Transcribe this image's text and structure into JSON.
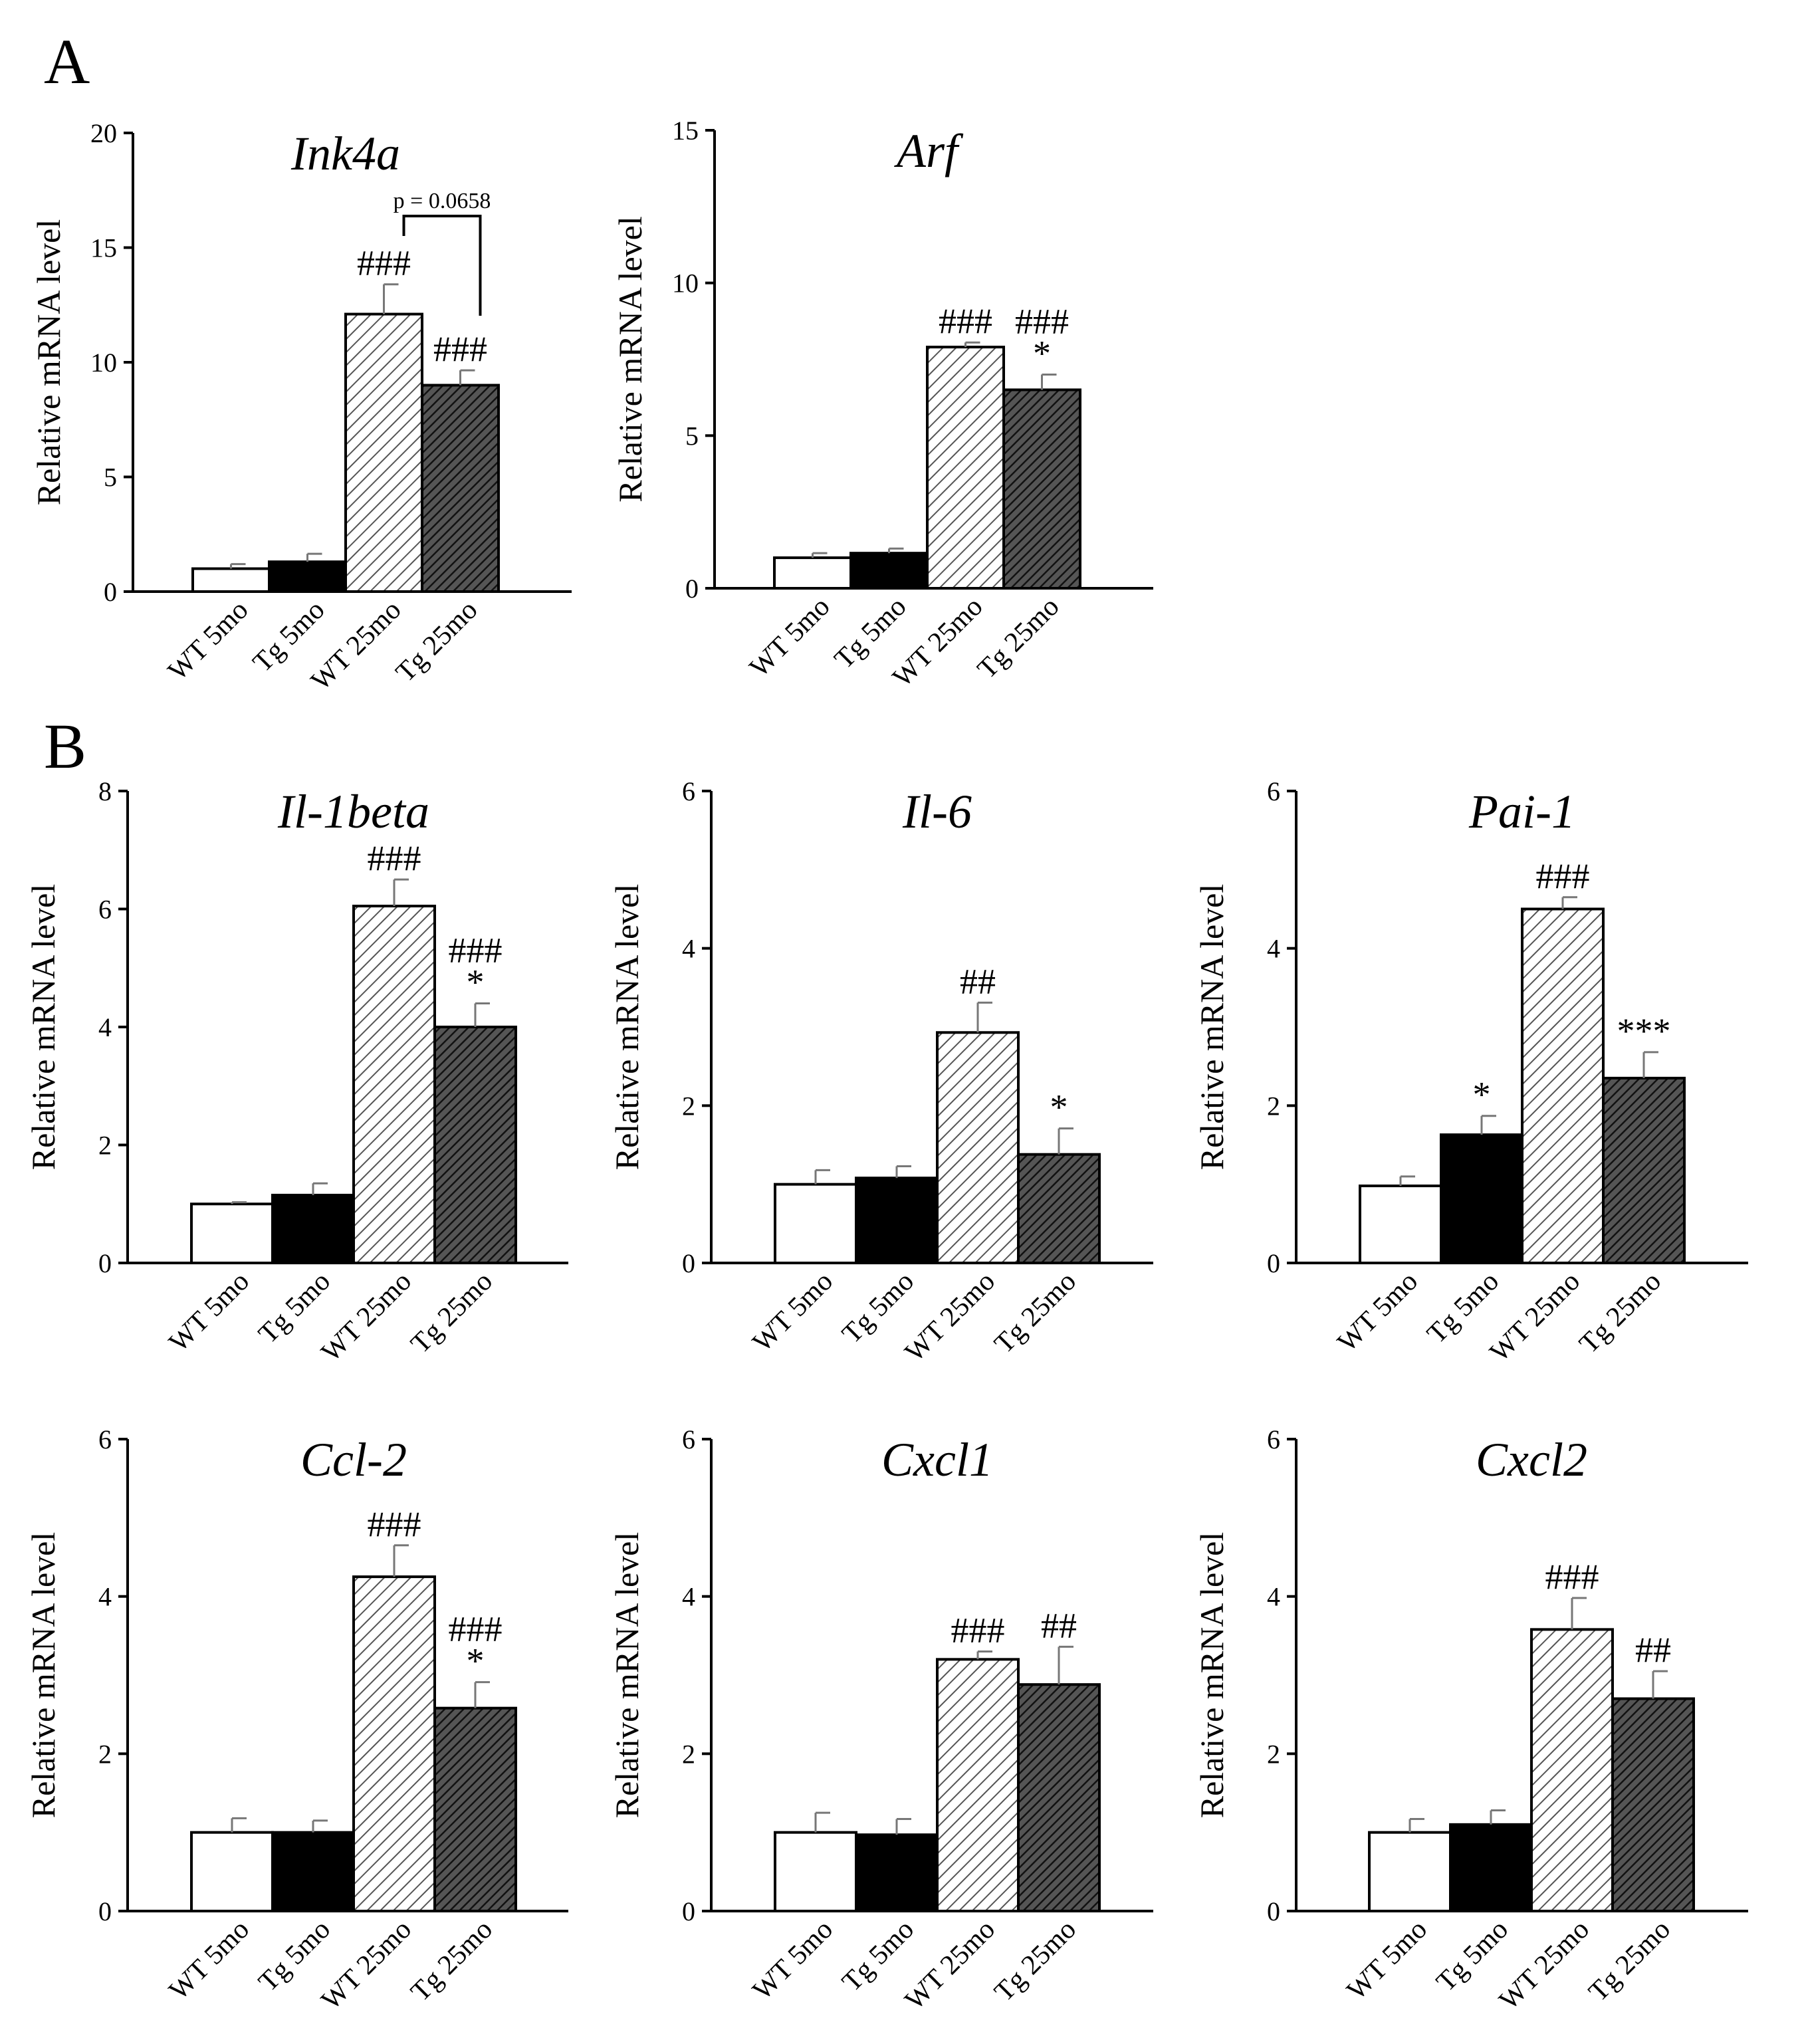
{
  "panel_labels": [
    "A",
    "B"
  ],
  "categories": [
    "WT 5mo",
    "Tg 5mo",
    "WT 25mo",
    "Tg 25mo"
  ],
  "bar_fills": [
    "#ffffff",
    "#000000",
    "stripe-light",
    "stripe-dark"
  ],
  "chart_data": [
    {
      "id": "ink4a",
      "type": "bar",
      "title": "Ink4a",
      "ylabel": "Relative mRNA level",
      "ylim": [
        0,
        20
      ],
      "yticks": [
        0,
        5,
        10,
        15,
        20
      ],
      "categories": [
        "WT 5mo",
        "Tg 5mo",
        "WT 25mo",
        "Tg 25mo"
      ],
      "values": [
        1.0,
        1.3,
        12.1,
        9.0
      ],
      "errors": [
        0.2,
        0.35,
        1.3,
        0.65
      ],
      "annotations": [
        {
          "bar": 2,
          "lines": [
            "###"
          ]
        },
        {
          "bar": 3,
          "lines": [
            "###"
          ]
        }
      ],
      "bracket": {
        "from": 2,
        "to": 3,
        "label": "p = 0.0658"
      }
    },
    {
      "id": "arf",
      "type": "bar",
      "title": "Arf",
      "ylabel": "Relative mRNA level",
      "ylim": [
        0,
        15
      ],
      "yticks": [
        0,
        5,
        10,
        15
      ],
      "categories": [
        "WT 5mo",
        "Tg 5mo",
        "WT 25mo",
        "Tg 25mo"
      ],
      "values": [
        1.0,
        1.15,
        7.9,
        6.5
      ],
      "errors": [
        0.15,
        0.15,
        0.15,
        0.5
      ],
      "annotations": [
        {
          "bar": 2,
          "lines": [
            "###"
          ]
        },
        {
          "bar": 3,
          "lines": [
            "###",
            "*"
          ]
        }
      ]
    },
    {
      "id": "il1beta",
      "type": "bar",
      "title": "Il-1beta",
      "ylabel": "Relative mRNA level",
      "ylim": [
        0,
        8
      ],
      "yticks": [
        0,
        2,
        4,
        6,
        8
      ],
      "categories": [
        "WT 5mo",
        "Tg 5mo",
        "WT 25mo",
        "Tg 25mo"
      ],
      "values": [
        1.0,
        1.15,
        6.05,
        4.0
      ],
      "errors": [
        0.03,
        0.2,
        0.45,
        0.4
      ],
      "annotations": [
        {
          "bar": 2,
          "lines": [
            "###"
          ]
        },
        {
          "bar": 3,
          "lines": [
            "###",
            "*"
          ]
        }
      ]
    },
    {
      "id": "il6",
      "type": "bar",
      "title": "Il-6",
      "ylabel": "Relative mRNA level",
      "ylim": [
        0,
        6
      ],
      "yticks": [
        0,
        2,
        4,
        6
      ],
      "categories": [
        "WT 5mo",
        "Tg 5mo",
        "WT 25mo",
        "Tg 25mo"
      ],
      "values": [
        1.0,
        1.08,
        2.93,
        1.38
      ],
      "errors": [
        0.18,
        0.15,
        0.38,
        0.33
      ],
      "annotations": [
        {
          "bar": 2,
          "lines": [
            "##"
          ]
        },
        {
          "bar": 3,
          "lines": [
            "*"
          ]
        }
      ]
    },
    {
      "id": "pai1",
      "type": "bar",
      "title": "Pai-1",
      "ylabel": "Relative mRNA level",
      "ylim": [
        0,
        6
      ],
      "yticks": [
        0,
        2,
        4,
        6
      ],
      "categories": [
        "WT 5mo",
        "Tg 5mo",
        "WT 25mo",
        "Tg 25mo"
      ],
      "values": [
        0.98,
        1.63,
        4.5,
        2.35
      ],
      "errors": [
        0.12,
        0.24,
        0.15,
        0.33
      ],
      "annotations": [
        {
          "bar": 1,
          "lines": [
            "*"
          ]
        },
        {
          "bar": 2,
          "lines": [
            "###"
          ]
        },
        {
          "bar": 3,
          "lines": [
            "***"
          ]
        }
      ]
    },
    {
      "id": "ccl2",
      "type": "bar",
      "title": "Ccl-2",
      "ylabel": "Relative mRNA level",
      "ylim": [
        0,
        6
      ],
      "yticks": [
        0,
        2,
        4,
        6
      ],
      "categories": [
        "WT 5mo",
        "Tg 5mo",
        "WT 25mo",
        "Tg 25mo"
      ],
      "values": [
        1.0,
        1.0,
        4.25,
        2.58
      ],
      "errors": [
        0.18,
        0.15,
        0.4,
        0.33
      ],
      "annotations": [
        {
          "bar": 2,
          "lines": [
            "###"
          ]
        },
        {
          "bar": 3,
          "lines": [
            "###",
            "*"
          ]
        }
      ]
    },
    {
      "id": "cxcl1",
      "type": "bar",
      "title": "Cxcl1",
      "ylabel": "Relative mRNA level",
      "ylim": [
        0,
        6
      ],
      "yticks": [
        0,
        2,
        4,
        6
      ],
      "categories": [
        "WT 5mo",
        "Tg 5mo",
        "WT 25mo",
        "Tg 25mo"
      ],
      "values": [
        1.0,
        0.97,
        3.2,
        2.88
      ],
      "errors": [
        0.25,
        0.2,
        0.1,
        0.48
      ],
      "annotations": [
        {
          "bar": 2,
          "lines": [
            "###"
          ]
        },
        {
          "bar": 3,
          "lines": [
            "##"
          ]
        }
      ]
    },
    {
      "id": "cxcl2",
      "type": "bar",
      "title": "Cxcl2",
      "ylabel": "Relative mRNA level",
      "ylim": [
        0,
        6
      ],
      "yticks": [
        0,
        2,
        4,
        6
      ],
      "categories": [
        "WT 5mo",
        "Tg 5mo",
        "WT 25mo",
        "Tg 25mo"
      ],
      "values": [
        1.0,
        1.1,
        3.58,
        2.7
      ],
      "errors": [
        0.17,
        0.18,
        0.4,
        0.35
      ],
      "annotations": [
        {
          "bar": 2,
          "lines": [
            "###"
          ]
        },
        {
          "bar": 3,
          "lines": [
            "##"
          ]
        }
      ]
    }
  ]
}
